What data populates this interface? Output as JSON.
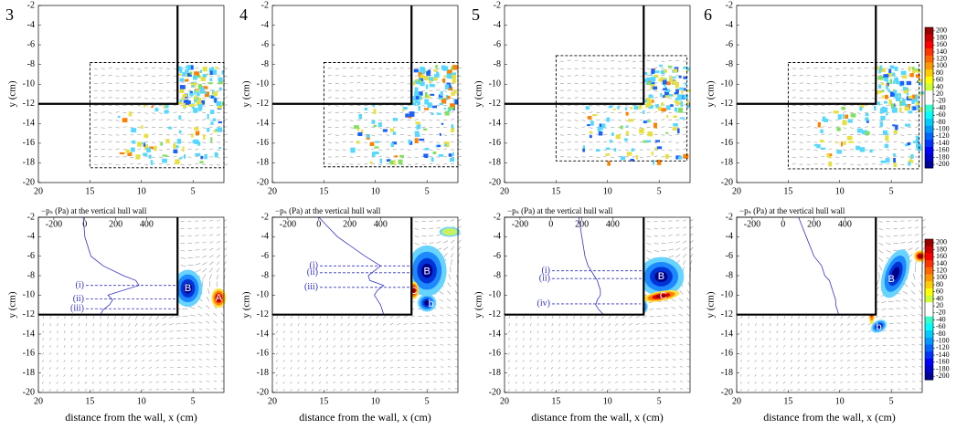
{
  "chart_data": [
    {
      "type": "contour",
      "panel_label": "3",
      "ylabel": "y (cm)",
      "xlim": [
        20,
        2
      ],
      "ylim": [
        -20,
        -2
      ],
      "xticks": [
        20,
        15,
        10,
        5
      ],
      "yticks": [
        -2,
        -4,
        -6,
        -8,
        -10,
        -12,
        -14,
        -16,
        -18,
        -20
      ]
    },
    {
      "type": "contour",
      "panel_label": "4",
      "ylabel": "y (cm)",
      "xlim": [
        20,
        2
      ],
      "ylim": [
        -20,
        -2
      ],
      "xticks": [
        20,
        15,
        10,
        5
      ],
      "yticks": [
        -2,
        -4,
        -6,
        -8,
        -10,
        -12,
        -14,
        -16,
        -18,
        -20
      ]
    },
    {
      "type": "contour",
      "panel_label": "5",
      "ylabel": "y (cm)",
      "xlim": [
        20,
        2
      ],
      "ylim": [
        -20,
        -2
      ],
      "xticks": [
        20,
        15,
        10,
        5
      ],
      "yticks": [
        -2,
        -4,
        -6,
        -8,
        -10,
        -12,
        -14,
        -16,
        -18,
        -20
      ]
    },
    {
      "type": "contour",
      "panel_label": "6",
      "ylabel": "y (cm)",
      "xlim": [
        20,
        2
      ],
      "ylim": [
        -20,
        -2
      ],
      "xticks": [
        20,
        15,
        10,
        5
      ],
      "yticks": [
        -2,
        -4,
        -6,
        -8,
        -10,
        -12,
        -14,
        -16,
        -18,
        -20
      ]
    },
    {
      "type": "contour",
      "ylabel": "y (cm)",
      "xlabel": "distance from the wall, x (cm)",
      "xlim": [
        20,
        2
      ],
      "ylim": [
        -20,
        -2
      ],
      "xticks": [
        20,
        15,
        10,
        5
      ],
      "yticks": [
        -2,
        -4,
        -6,
        -8,
        -10,
        -12,
        -14,
        -16,
        -18,
        -20
      ],
      "inset": {
        "title": "−pₛ (Pa) at the vertical hull wall",
        "xlim": [
          -300,
          600
        ],
        "xticks": [
          -200,
          0,
          200,
          400
        ],
        "color": "#3333cc",
        "y": [
          -2,
          -4,
          -6,
          -7,
          -8,
          -8.5,
          -9,
          -9.5,
          -10,
          -10.5,
          -11,
          -11.5,
          -12
        ],
        "values": [
          -10,
          0,
          40,
          120,
          250,
          330,
          350,
          250,
          150,
          180,
          160,
          120,
          100
        ]
      },
      "annotations": [
        "(i)",
        "(ii)",
        "(iii)",
        "B",
        "A"
      ]
    },
    {
      "type": "contour",
      "ylabel": "y (cm)",
      "xlabel": "distance from the wall, x (cm)",
      "xlim": [
        20,
        2
      ],
      "ylim": [
        -20,
        -2
      ],
      "xticks": [
        20,
        15,
        10,
        5
      ],
      "yticks": [
        -2,
        -4,
        -6,
        -8,
        -10,
        -12,
        -14,
        -16,
        -18,
        -20
      ],
      "inset": {
        "title": "−pₛ (Pa) at the vertical hull wall",
        "xlim": [
          -300,
          600
        ],
        "xticks": [
          -200,
          0,
          200,
          400
        ],
        "color": "#3333cc",
        "y": [
          -2,
          -4,
          -6,
          -7,
          -8,
          -8.5,
          -9,
          -9.5,
          -10,
          -10.5,
          -11,
          -11.5,
          -12
        ],
        "values": [
          0,
          120,
          300,
          400,
          320,
          330,
          420,
          380,
          360,
          380,
          400,
          410,
          420
        ]
      },
      "annotations": [
        "(i)",
        "(ii)",
        "(iii)",
        "B",
        "C",
        "b"
      ]
    },
    {
      "type": "contour",
      "ylabel": "y (cm)",
      "xlabel": "distance from the wall, x (cm)",
      "xlim": [
        20,
        2
      ],
      "ylim": [
        -20,
        -2
      ],
      "xticks": [
        20,
        15,
        10,
        5
      ],
      "yticks": [
        -2,
        -4,
        -6,
        -8,
        -10,
        -12,
        -14,
        -16,
        -18,
        -20
      ],
      "inset": {
        "title": "−pₛ (Pa) at the vertical hull wall",
        "xlim": [
          -300,
          600
        ],
        "xticks": [
          -200,
          0,
          200,
          400
        ],
        "color": "#3333cc",
        "y": [
          -2,
          -4,
          -6,
          -7,
          -8,
          -8.5,
          -9,
          -9.5,
          -10,
          -10.5,
          -11,
          -11.5,
          -12
        ],
        "values": [
          180,
          200,
          220,
          240,
          280,
          300,
          310,
          320,
          320,
          300,
          290,
          310,
          340
        ]
      },
      "annotations": [
        "(i)",
        "(ii)",
        "(iv)",
        "B",
        "C",
        "b"
      ]
    },
    {
      "type": "contour",
      "ylabel": "y (cm)",
      "xlabel": "distance from the wall, x (cm)",
      "xlim": [
        20,
        2
      ],
      "ylim": [
        -20,
        -2
      ],
      "xticks": [
        20,
        15,
        10,
        5
      ],
      "yticks": [
        -2,
        -4,
        -6,
        -8,
        -10,
        -12,
        -14,
        -16,
        -18,
        -20
      ],
      "inset": {
        "title": "−pₛ (Pa) at the vertical hull wall",
        "xlim": [
          -300,
          600
        ],
        "xticks": [
          -200,
          0,
          200,
          400
        ],
        "color": "#3333cc",
        "y": [
          -2,
          -4,
          -6,
          -7,
          -8,
          -8.5,
          -9,
          -9.5,
          -10,
          -10.5,
          -11,
          -11.5,
          -12
        ],
        "values": [
          100,
          150,
          200,
          250,
          270,
          300,
          310,
          320,
          330,
          340,
          340,
          350,
          360
        ]
      },
      "annotations": [
        "B",
        "b"
      ]
    },
    {
      "type": "colorbar",
      "yticks": [
        200,
        180,
        160,
        140,
        120,
        100,
        80,
        60,
        40,
        20,
        -20,
        -40,
        -60,
        -80,
        -100,
        -120,
        -140,
        -160,
        -180,
        -200
      ]
    },
    {
      "type": "colorbar",
      "yticks": [
        200,
        180,
        160,
        140,
        120,
        100,
        80,
        60,
        40,
        20,
        -20,
        -40,
        -60,
        -80,
        -100,
        -120,
        -140,
        -160,
        -180,
        -200
      ]
    }
  ]
}
